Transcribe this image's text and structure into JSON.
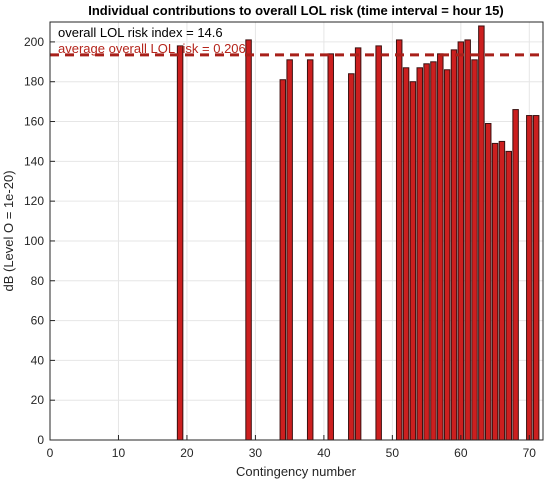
{
  "chart_data": {
    "type": "bar",
    "title": "Individual contributions to overall LOL risk (time interval = hour 15)",
    "xlabel": "Contingency number",
    "ylabel": "dB (Level O = 1e-20)",
    "xlim": [
      0,
      72
    ],
    "ylim": [
      0,
      210
    ],
    "xticks": [
      0,
      10,
      20,
      30,
      40,
      50,
      60,
      70
    ],
    "yticks": [
      0,
      20,
      40,
      60,
      80,
      100,
      120,
      140,
      160,
      180,
      200
    ],
    "grid": true,
    "annotations": [
      {
        "text": "overall LOL risk index = 14.6",
        "color": "#000000"
      },
      {
        "text": "average overall LOL risk = 0.206",
        "color": "#b5251c"
      }
    ],
    "reference_line": {
      "value": 193.5,
      "style": "dashed",
      "color": "#a8201a"
    },
    "bar_color": "#cc1f1f",
    "bar_edge_color": "#3a1010",
    "x": [
      19,
      29,
      34,
      35,
      38,
      41,
      44,
      45,
      48,
      51,
      52,
      53,
      54,
      55,
      56,
      57,
      58,
      59,
      60,
      61,
      62,
      63,
      64,
      65,
      66,
      67,
      68,
      70,
      71
    ],
    "values": [
      198,
      201,
      181,
      191,
      191,
      194,
      184,
      197,
      198,
      201,
      187,
      180,
      187,
      189,
      190,
      194,
      186,
      196,
      200,
      201,
      191,
      208,
      159,
      149,
      150,
      145,
      166,
      163,
      163
    ]
  }
}
